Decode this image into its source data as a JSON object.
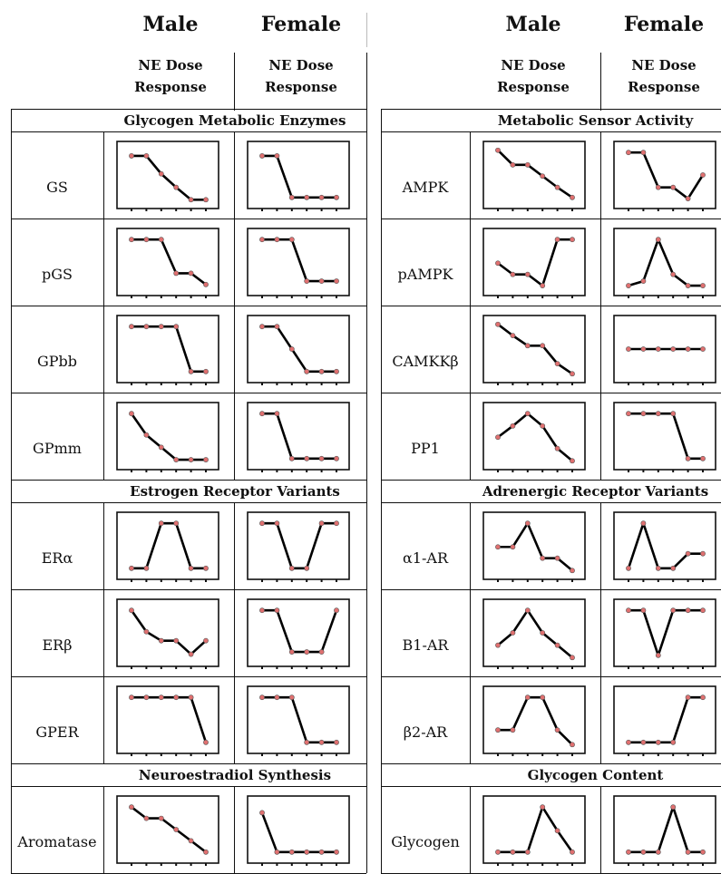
{
  "headers": {
    "left": {
      "male": "Male",
      "female": "Female",
      "male_sub": [
        "NE Dose",
        "Response"
      ],
      "female_sub": [
        "NE Dose",
        "Response"
      ]
    },
    "right": {
      "male": "Male",
      "female": "Female",
      "male_sub": [
        "NE Dose",
        "Response"
      ],
      "female_sub": [
        "NE Dose",
        "Response"
      ]
    }
  },
  "colors": {
    "line": "#000000",
    "marker": "#e07070"
  },
  "chart_data": [
    {
      "type": "line",
      "panel": "left",
      "section": "Glycogen Metabolic Enzymes",
      "rows": [
        {
          "label": "GS",
          "male": [
            4.2,
            4.2,
            2.6,
            1.4,
            0.3,
            0.3
          ],
          "female": [
            4.2,
            4.2,
            0.5,
            0.5,
            0.5,
            0.5
          ]
        },
        {
          "label": "pGS",
          "male": [
            4.5,
            4.5,
            4.5,
            1.5,
            1.5,
            0.5
          ],
          "female": [
            4.5,
            4.5,
            4.5,
            0.8,
            0.8,
            0.8
          ]
        },
        {
          "label": "GPbb",
          "male": [
            4.5,
            4.5,
            4.5,
            4.5,
            0.5,
            0.5
          ],
          "female": [
            4.5,
            4.5,
            2.5,
            0.5,
            0.5,
            0.5
          ]
        },
        {
          "label": "GPmm",
          "male": [
            4.5,
            2.6,
            1.5,
            0.4,
            0.4,
            0.4
          ],
          "female": [
            4.5,
            4.5,
            0.5,
            0.5,
            0.5,
            0.5
          ]
        }
      ]
    },
    {
      "type": "line",
      "panel": "left",
      "section": "Estrogen Receptor Variants",
      "rows": [
        {
          "label": "ERα",
          "male": [
            0.5,
            0.5,
            4.5,
            4.5,
            0.5,
            0.5
          ],
          "female": [
            4.5,
            4.5,
            0.5,
            0.5,
            4.5,
            4.5
          ]
        },
        {
          "label": "ERβ",
          "male": [
            4.5,
            2.6,
            1.8,
            1.8,
            0.6,
            1.8
          ],
          "female": [
            4.5,
            4.5,
            0.8,
            0.8,
            0.8,
            4.5
          ]
        },
        {
          "label": "GPER",
          "male": [
            4.5,
            4.5,
            4.5,
            4.5,
            4.5,
            0.5
          ],
          "female": [
            4.5,
            4.5,
            4.5,
            0.5,
            0.5,
            0.5
          ]
        }
      ]
    },
    {
      "type": "line",
      "panel": "left",
      "section": "Neuroestradiol Synthesis",
      "rows": [
        {
          "label": "Aromatase",
          "male": [
            4.5,
            3.5,
            3.5,
            2.5,
            1.5,
            0.5
          ],
          "female": [
            4.0,
            0.5,
            0.5,
            0.5,
            0.5,
            0.5
          ]
        }
      ]
    },
    {
      "type": "line",
      "panel": "right",
      "section": "Metabolic Sensor Activity",
      "rows": [
        {
          "label": "AMPK",
          "male": [
            4.7,
            3.4,
            3.4,
            2.4,
            1.4,
            0.5
          ],
          "female": [
            4.5,
            4.5,
            1.4,
            1.4,
            0.4,
            2.5
          ]
        },
        {
          "label": "pAMPK",
          "male": [
            2.4,
            1.4,
            1.4,
            0.4,
            4.5,
            4.5
          ],
          "female": [
            0.4,
            0.8,
            4.5,
            1.4,
            0.4,
            0.4
          ]
        },
        {
          "label": "CAMKKβ",
          "male": [
            4.7,
            3.7,
            2.8,
            2.8,
            1.2,
            0.3
          ],
          "female": [
            2.5,
            2.5,
            2.5,
            2.5,
            2.5,
            2.5
          ]
        },
        {
          "label": "PP1",
          "male": [
            2.4,
            3.4,
            4.5,
            3.4,
            1.4,
            0.3
          ],
          "female": [
            4.5,
            4.5,
            4.5,
            4.5,
            0.5,
            0.5
          ]
        }
      ]
    },
    {
      "type": "line",
      "panel": "right",
      "section": "Adrenergic Receptor Variants",
      "rows": [
        {
          "label": "α1-AR",
          "male": [
            2.4,
            2.4,
            4.5,
            1.4,
            1.4,
            0.3
          ],
          "female": [
            0.5,
            4.5,
            0.5,
            0.5,
            1.8,
            1.8
          ]
        },
        {
          "label": "B1-AR",
          "male": [
            1.4,
            2.5,
            4.5,
            2.5,
            1.4,
            0.3
          ],
          "female": [
            4.5,
            4.5,
            0.5,
            4.5,
            4.5,
            4.5
          ]
        },
        {
          "label": "β2-AR",
          "male": [
            1.6,
            1.6,
            4.5,
            4.5,
            1.6,
            0.3
          ],
          "female": [
            0.5,
            0.5,
            0.5,
            0.5,
            4.5,
            4.5
          ]
        }
      ]
    },
    {
      "type": "line",
      "panel": "right",
      "section": "Glycogen Content",
      "rows": [
        {
          "label": "Glycogen",
          "male": [
            0.5,
            0.5,
            0.5,
            4.5,
            2.4,
            0.5
          ],
          "female": [
            0.5,
            0.5,
            0.5,
            4.5,
            0.5,
            0.5
          ]
        }
      ]
    }
  ]
}
